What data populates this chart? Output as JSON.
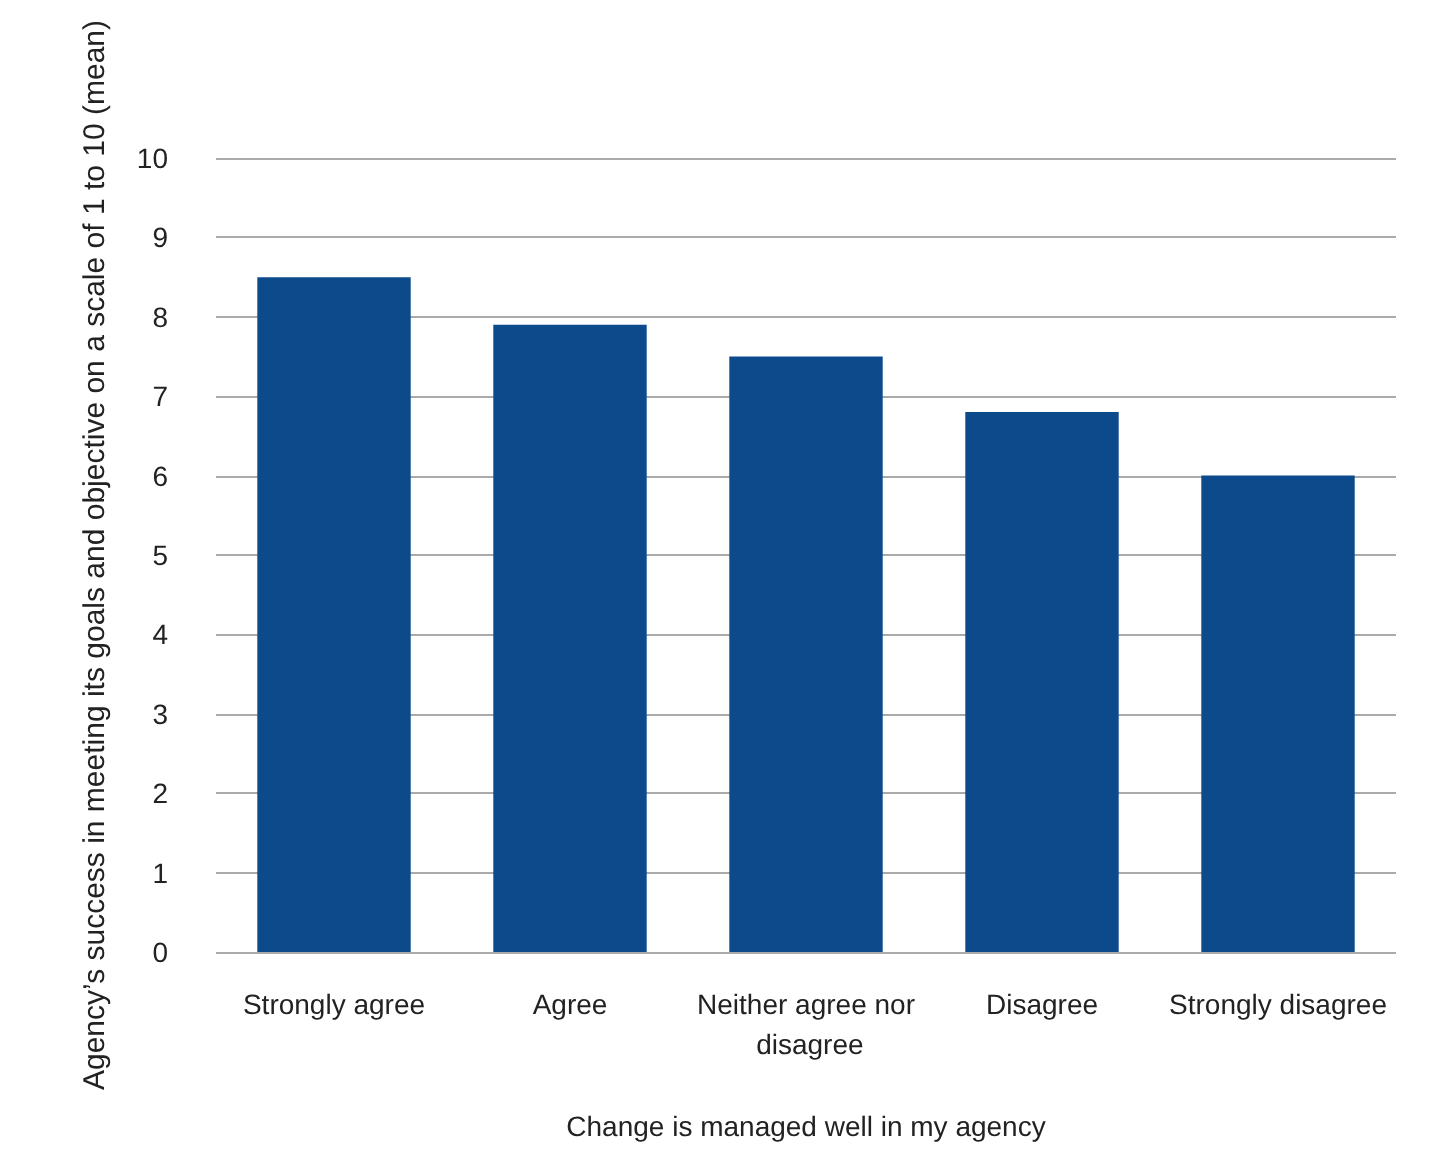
{
  "chart_data": {
    "type": "bar",
    "xlabel": "Change is managed well in my agency",
    "ylabel": "Agency’s success in meeting its goals and objective on a scale of 1 to 10 (mean)",
    "categories": [
      "Strongly agree",
      "Agree",
      "Neither agree nor disagree",
      "Disagree",
      "Strongly disagree"
    ],
    "values": [
      8.5,
      7.9,
      7.5,
      6.8,
      6.0
    ],
    "color": "#0d4a8c",
    "ylim": [
      0,
      10
    ],
    "yticks": [
      0,
      1,
      2,
      3,
      4,
      5,
      6,
      7,
      8,
      9,
      10
    ],
    "grid": "y"
  }
}
